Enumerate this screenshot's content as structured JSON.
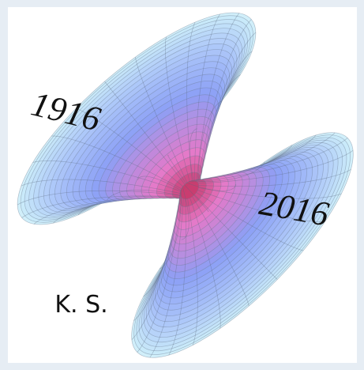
{
  "texts": {
    "left_year": "1916",
    "right_year": "2016",
    "initials": "K. S."
  }
}
